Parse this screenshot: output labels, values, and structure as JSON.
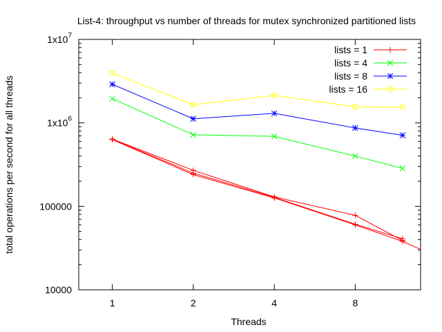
{
  "chart_data": {
    "type": "line",
    "title": "List-4: throughput vs number of threads for mutex synchronized partitioned lists",
    "xlabel": "Threads",
    "ylabel": "total operations per second for all threads",
    "x_scale": "log2",
    "y_scale": "log10",
    "xlim": [
      0.75,
      14
    ],
    "ylim": [
      10000,
      10000000
    ],
    "x_ticks": [
      {
        "value": 1,
        "label": "1"
      },
      {
        "value": 2,
        "label": "2"
      },
      {
        "value": 4,
        "label": "4"
      },
      {
        "value": 8,
        "label": "8"
      }
    ],
    "y_ticks": [
      {
        "value": 10000,
        "base": "10000",
        "exp": ""
      },
      {
        "value": 100000,
        "base": "100000",
        "exp": ""
      },
      {
        "value": 1000000,
        "base": "1x10",
        "exp": "6"
      },
      {
        "value": 10000000,
        "base": "1x10",
        "exp": "7"
      }
    ],
    "grid": false,
    "legend_position": "top-right",
    "series": [
      {
        "name": "lists = 1",
        "color": "#ff0000",
        "marker": "plus",
        "lines": [
          {
            "x": [
              1,
              2,
              4,
              8,
              12
            ],
            "y": [
              640000,
              270000,
              130000,
              78000,
              39000
            ]
          },
          {
            "x": [
              1,
              2,
              4,
              8,
              12
            ],
            "y": [
              635000,
              250000,
              128000,
              61000,
              41000
            ]
          },
          {
            "x": [
              1,
              2,
              4,
              8,
              12,
              14
            ],
            "y": [
              630000,
              240000,
              126000,
              60000,
              38000,
              30500
            ]
          }
        ]
      },
      {
        "name": "lists = 4",
        "color": "#00ff00",
        "marker": "cross",
        "lines": [
          {
            "x": [
              1,
              2,
              4,
              8,
              12
            ],
            "y": [
              1950000,
              720000,
              690000,
              400000,
              285000
            ]
          }
        ]
      },
      {
        "name": "lists = 8",
        "color": "#0000ff",
        "marker": "star",
        "lines": [
          {
            "x": [
              1,
              2,
              4,
              8,
              12
            ],
            "y": [
              2900000,
              1120000,
              1300000,
              870000,
              710000
            ]
          }
        ]
      },
      {
        "name": "lists = 16",
        "color": "#ffff00",
        "marker": "square",
        "lines": [
          {
            "x": [
              1,
              2,
              4,
              8,
              12
            ],
            "y": [
              3950000,
              1650000,
              2130000,
              1560000,
              1540000
            ]
          }
        ]
      }
    ]
  }
}
